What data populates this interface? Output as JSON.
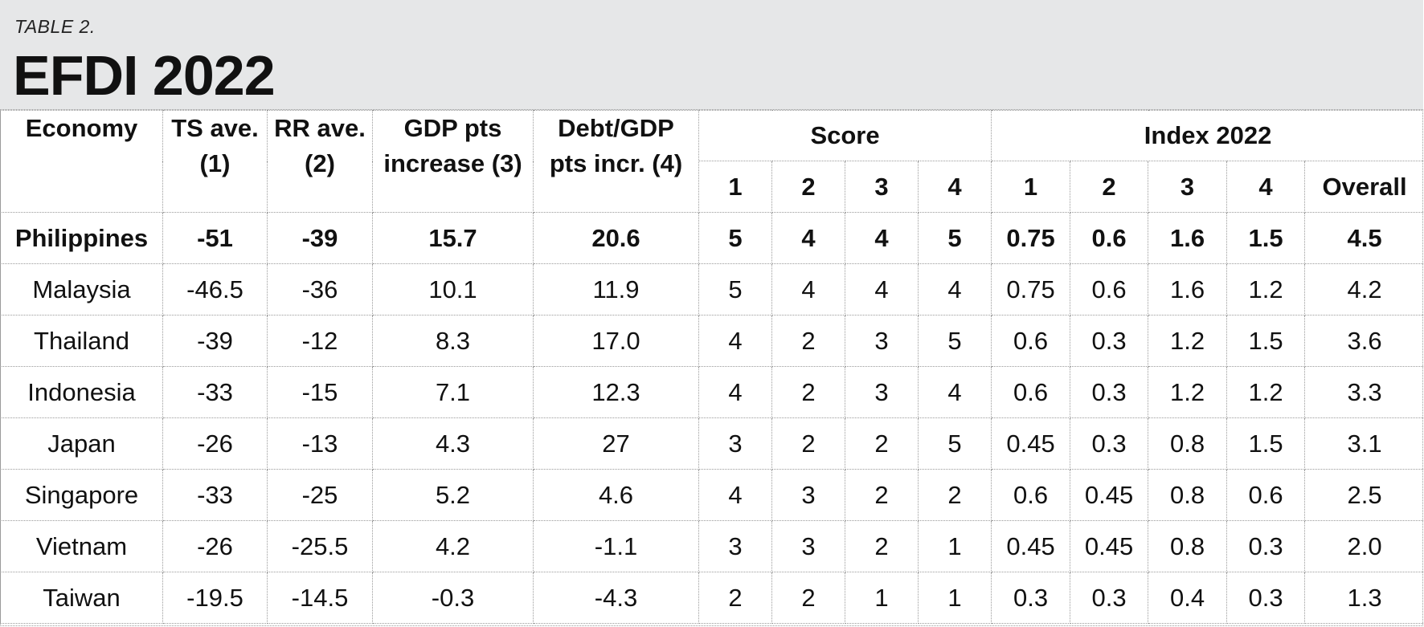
{
  "header": {
    "table_label": "TABLE 2.",
    "title": "EFDI 2022"
  },
  "table": {
    "columns": {
      "economy": "Economy",
      "ts_line1": "TS ave.",
      "ts_line2": "(1)",
      "rr_line1": "RR ave.",
      "rr_line2": "(2)",
      "gdp_line1": "GDP pts",
      "gdp_line2": "increase (3)",
      "debt_line1": "Debt/GDP",
      "debt_line2": "pts incr. (4)",
      "score_group": "Score",
      "index_group": "Index 2022",
      "score_sub": [
        "1",
        "2",
        "3",
        "4"
      ],
      "index_sub": [
        "1",
        "2",
        "3",
        "4",
        "Overall"
      ]
    },
    "rows": [
      {
        "economy": "Philippines",
        "ts": "-51",
        "rr": "-39",
        "gdp": "15.7",
        "debt": "20.6",
        "s1": "5",
        "s2": "4",
        "s3": "4",
        "s4": "5",
        "i1": "0.75",
        "i2": "0.6",
        "i3": "1.6",
        "i4": "1.5",
        "overall": "4.5"
      },
      {
        "economy": "Malaysia",
        "ts": "-46.5",
        "rr": "-36",
        "gdp": "10.1",
        "debt": "11.9",
        "s1": "5",
        "s2": "4",
        "s3": "4",
        "s4": "4",
        "i1": "0.75",
        "i2": "0.6",
        "i3": "1.6",
        "i4": "1.2",
        "overall": "4.2"
      },
      {
        "economy": "Thailand",
        "ts": "-39",
        "rr": "-12",
        "gdp": "8.3",
        "debt": "17.0",
        "s1": "4",
        "s2": "2",
        "s3": "3",
        "s4": "5",
        "i1": "0.6",
        "i2": "0.3",
        "i3": "1.2",
        "i4": "1.5",
        "overall": "3.6"
      },
      {
        "economy": "Indonesia",
        "ts": "-33",
        "rr": "-15",
        "gdp": "7.1",
        "debt": "12.3",
        "s1": "4",
        "s2": "2",
        "s3": "3",
        "s4": "4",
        "i1": "0.6",
        "i2": "0.3",
        "i3": "1.2",
        "i4": "1.2",
        "overall": "3.3"
      },
      {
        "economy": "Japan",
        "ts": "-26",
        "rr": "-13",
        "gdp": "4.3",
        "debt": "27",
        "s1": "3",
        "s2": "2",
        "s3": "2",
        "s4": "5",
        "i1": "0.45",
        "i2": "0.3",
        "i3": "0.8",
        "i4": "1.5",
        "overall": "3.1"
      },
      {
        "economy": "Singapore",
        "ts": "-33",
        "rr": "-25",
        "gdp": "5.2",
        "debt": "4.6",
        "s1": "4",
        "s2": "3",
        "s3": "2",
        "s4": "2",
        "i1": "0.6",
        "i2": "0.45",
        "i3": "0.8",
        "i4": "0.6",
        "overall": "2.5"
      },
      {
        "economy": "Vietnam",
        "ts": "-26",
        "rr": "-25.5",
        "gdp": "4.2",
        "debt": "-1.1",
        "s1": "3",
        "s2": "3",
        "s3": "2",
        "s4": "1",
        "i1": "0.45",
        "i2": "0.45",
        "i3": "0.8",
        "i4": "0.3",
        "overall": "2.0"
      },
      {
        "economy": "Taiwan",
        "ts": "-19.5",
        "rr": "-14.5",
        "gdp": "-0.3",
        "debt": "-4.3",
        "s1": "2",
        "s2": "2",
        "s3": "1",
        "s4": "1",
        "i1": "0.3",
        "i2": "0.3",
        "i3": "0.4",
        "i4": "0.3",
        "overall": "1.3"
      }
    ]
  }
}
